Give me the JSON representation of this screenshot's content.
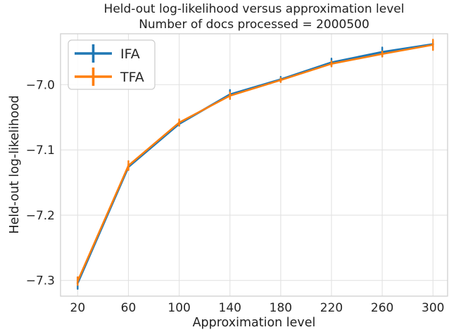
{
  "figure": {
    "title_line1": "Held-out log-likelihood versus approximation level",
    "title_line2": "Number of docs processed = 2000500",
    "xlabel": "Approximation level",
    "ylabel": "Held-out log-likelihood"
  },
  "chart_data": {
    "type": "line",
    "title": "Held-out log-likelihood versus approximation level",
    "subtitle": "Number of docs processed = 2000500",
    "xlabel": "Approximation level",
    "ylabel": "Held-out log-likelihood",
    "x": [
      20,
      60,
      100,
      140,
      180,
      220,
      260,
      300
    ],
    "series": [
      {
        "name": "IFA",
        "color": "#1f77b4",
        "values": [
          -7.304,
          -7.126,
          -7.06,
          -7.015,
          -6.992,
          -6.966,
          -6.95,
          -6.938
        ],
        "yerr": [
          0.009,
          0.004,
          0.003,
          0.007,
          0.004,
          0.006,
          0.007,
          0.004
        ]
      },
      {
        "name": "TFA",
        "color": "#ff7f0e",
        "values": [
          -7.301,
          -7.124,
          -7.058,
          -7.017,
          -6.993,
          -6.968,
          -6.953,
          -6.939
        ],
        "yerr": [
          0.006,
          0.007,
          0.005,
          0.005,
          0.003,
          0.004,
          0.004,
          0.008
        ]
      }
    ],
    "xticks": [
      20,
      60,
      100,
      140,
      180,
      220,
      260,
      300
    ],
    "xtick_labels": [
      "20",
      "60",
      "100",
      "140",
      "180",
      "220",
      "260",
      "300"
    ],
    "yticks": [
      -7.0,
      -7.1,
      -7.2,
      -7.3
    ],
    "ytick_labels": [
      "−7.0",
      "−7.1",
      "−7.2",
      "−7.3"
    ],
    "xlim": [
      6.5,
      311.5
    ],
    "ylim": [
      -7.324,
      -6.922
    ],
    "grid": true,
    "legend_position": "upper left",
    "legend_labels": [
      "IFA",
      "TFA"
    ],
    "colors": {
      "background": "#ffffff",
      "grid": "#e2e2e2",
      "spine": "#cfcfcf",
      "text": "#262626",
      "legend_border": "#cccccc"
    }
  }
}
